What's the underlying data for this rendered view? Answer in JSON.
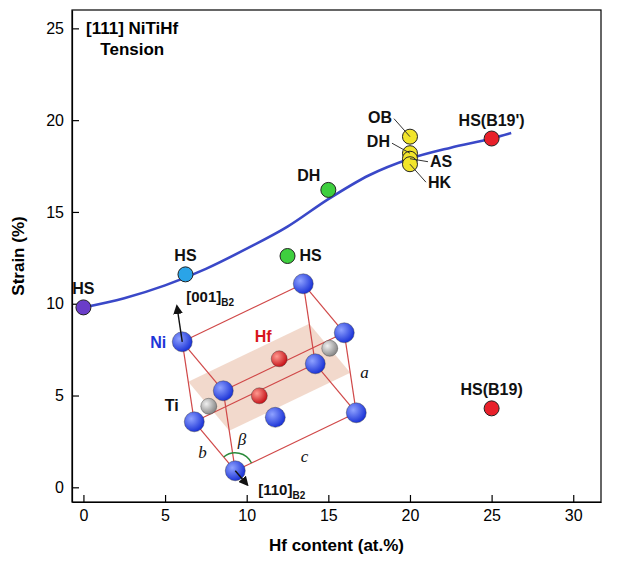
{
  "chart_data": {
    "type": "scatter",
    "title": "[111] NiTiHf",
    "subtitle": "Tension",
    "x_label": "Hf content (at.%)",
    "y_label": "Strain (%)",
    "xlim": [
      -0.7,
      31.7
    ],
    "ylim": [
      -0.8,
      26
    ],
    "xticks": [
      0,
      5,
      10,
      15,
      20,
      25,
      30
    ],
    "yticks": [
      0,
      5,
      10,
      15,
      20,
      25
    ],
    "grid": false,
    "marker": "circle",
    "points": {
      "x": [
        0,
        6.25,
        12.5,
        15,
        20,
        20,
        20,
        20,
        25,
        25
      ],
      "values": [
        9.8,
        11.6,
        12.6,
        16.2,
        19.1,
        18.2,
        17.9,
        17.6,
        19.0,
        4.3
      ],
      "labels": [
        "HS",
        "HS",
        "HS",
        "DH",
        "OB",
        "DH",
        "AS",
        "HK",
        "HS(B19')",
        "HS(B19)"
      ],
      "colors": [
        "#6a3dc9",
        "#2aa4e8",
        "#3ecf3e",
        "#3ecf3e",
        "#f2e52a",
        "#f2e52a",
        "#f2e52a",
        "#f2e52a",
        "#e8202a",
        "#e8202a"
      ]
    },
    "curve": {
      "type": "line",
      "line_style": "solid",
      "color": "#3a48c8",
      "x": [
        0,
        2.5,
        5,
        7.5,
        10,
        12.5,
        15,
        17.5,
        20,
        22.5,
        25,
        26.2
      ],
      "values": [
        9.8,
        10.3,
        11.0,
        11.9,
        13.0,
        14.2,
        15.7,
        17.0,
        17.9,
        18.5,
        19.0,
        19.3
      ]
    },
    "inset": {
      "directions": [
        {
          "text": "[001]",
          "sub": "B2"
        },
        {
          "text": "[110]",
          "sub": "B2"
        }
      ],
      "atoms": [
        "Ni",
        "Hf",
        "Ti"
      ],
      "lattice": [
        "a",
        "b",
        "c",
        "β"
      ]
    }
  }
}
